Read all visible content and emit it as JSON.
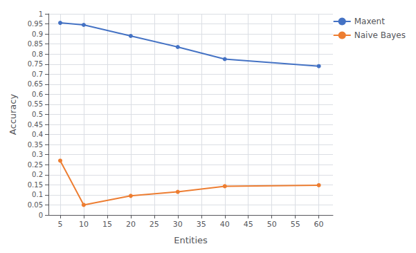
{
  "chart_data": {
    "type": "line",
    "xlabel": "Entities",
    "ylabel": "Accuracy",
    "x": [
      5,
      10,
      20,
      30,
      40,
      60
    ],
    "series": [
      {
        "name": "Maxent",
        "color": "#4472C4",
        "values": [
          0.955,
          0.945,
          0.89,
          0.835,
          0.775,
          0.74
        ]
      },
      {
        "name": "Naive Bayes",
        "color": "#ED7D31",
        "values": [
          0.27,
          0.05,
          0.095,
          0.115,
          0.143,
          0.148
        ]
      }
    ],
    "xlim": [
      2.5,
      63
    ],
    "xticks": [
      5,
      10,
      15,
      20,
      25,
      30,
      35,
      40,
      45,
      50,
      55,
      60
    ],
    "ylim": [
      0,
      1.0
    ],
    "yticks": [
      0,
      0.05,
      0.1,
      0.15,
      0.2,
      0.25,
      0.3,
      0.35,
      0.4,
      0.45,
      0.5,
      0.55,
      0.6,
      0.65,
      0.7,
      0.75,
      0.8,
      0.85,
      0.9,
      0.95,
      1
    ],
    "grid": true,
    "legend": "right",
    "marker": "circle"
  }
}
